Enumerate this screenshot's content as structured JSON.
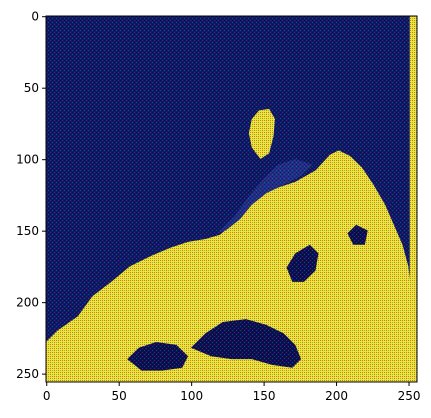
{
  "chart_data": {
    "type": "heatmap",
    "title": "",
    "xlabel": "",
    "ylabel": "",
    "image_size": [
      256,
      256
    ],
    "xlim": [
      0,
      256
    ],
    "ylim": [
      256,
      0
    ],
    "x_ticks": [
      0,
      50,
      100,
      150,
      200,
      250
    ],
    "y_ticks": [
      0,
      50,
      100,
      150,
      200,
      250
    ],
    "x_tick_labels": [
      "0",
      "50",
      "100",
      "150",
      "200",
      "250"
    ],
    "y_tick_labels": [
      "0",
      "50",
      "100",
      "150",
      "200",
      "250"
    ],
    "colors": {
      "background": "#0b1a6e",
      "dark_blue": "#08105a",
      "mid_blue": "#1c2f8f",
      "yellow": "#f2e23d",
      "yellow_dark": "#c9b629",
      "olive": "#7f7a3a",
      "red_speckle": "#b32020",
      "green_speckle": "#2f8f3a"
    },
    "regions": [
      {
        "name": "bright-mountain",
        "color": "yellow",
        "points": [
          [
            0,
            256
          ],
          [
            0,
            228
          ],
          [
            8,
            220
          ],
          [
            22,
            210
          ],
          [
            32,
            196
          ],
          [
            45,
            186
          ],
          [
            58,
            175
          ],
          [
            72,
            168
          ],
          [
            86,
            162
          ],
          [
            98,
            158
          ],
          [
            110,
            156
          ],
          [
            120,
            153
          ],
          [
            126,
            148
          ],
          [
            134,
            138
          ],
          [
            142,
            130
          ],
          [
            150,
            124
          ],
          [
            160,
            120
          ],
          [
            172,
            116
          ],
          [
            186,
            108
          ],
          [
            196,
            97
          ],
          [
            202,
            94
          ],
          [
            210,
            98
          ],
          [
            218,
            106
          ],
          [
            226,
            118
          ],
          [
            234,
            132
          ],
          [
            240,
            146
          ],
          [
            246,
            160
          ],
          [
            250,
            175
          ],
          [
            252,
            192
          ],
          [
            253,
            210
          ],
          [
            253,
            230
          ],
          [
            253,
            256
          ]
        ]
      },
      {
        "name": "bright-peak",
        "color": "yellow",
        "points": [
          [
            142,
            92
          ],
          [
            140,
            82
          ],
          [
            142,
            72
          ],
          [
            147,
            66
          ],
          [
            154,
            65
          ],
          [
            158,
            72
          ],
          [
            157,
            84
          ],
          [
            154,
            96
          ],
          [
            148,
            100
          ]
        ]
      },
      {
        "name": "ridge-shadow",
        "color": "mid_blue",
        "points": [
          [
            118,
            152
          ],
          [
            130,
            140
          ],
          [
            140,
            126
          ],
          [
            150,
            114
          ],
          [
            160,
            104
          ],
          [
            172,
            100
          ],
          [
            184,
            104
          ],
          [
            176,
            112
          ],
          [
            164,
            118
          ],
          [
            152,
            124
          ],
          [
            142,
            132
          ],
          [
            134,
            142
          ],
          [
            124,
            150
          ]
        ]
      },
      {
        "name": "valley-dark",
        "color": "dark_blue",
        "points": [
          [
            100,
            232
          ],
          [
            110,
            222
          ],
          [
            122,
            214
          ],
          [
            138,
            212
          ],
          [
            152,
            216
          ],
          [
            164,
            222
          ],
          [
            172,
            230
          ],
          [
            176,
            240
          ],
          [
            170,
            246
          ],
          [
            156,
            244
          ],
          [
            142,
            240
          ],
          [
            128,
            240
          ],
          [
            114,
            238
          ]
        ]
      },
      {
        "name": "valley-dark-2",
        "color": "dark_blue",
        "points": [
          [
            56,
            240
          ],
          [
            64,
            232
          ],
          [
            76,
            228
          ],
          [
            90,
            230
          ],
          [
            98,
            238
          ],
          [
            94,
            246
          ],
          [
            80,
            248
          ],
          [
            66,
            248
          ]
        ]
      },
      {
        "name": "mid-ridge-dark",
        "color": "dark_blue",
        "points": [
          [
            166,
            176
          ],
          [
            172,
            166
          ],
          [
            182,
            160
          ],
          [
            188,
            166
          ],
          [
            186,
            178
          ],
          [
            178,
            186
          ],
          [
            170,
            186
          ]
        ]
      },
      {
        "name": "right-patch",
        "color": "dark_blue",
        "points": [
          [
            208,
            152
          ],
          [
            214,
            146
          ],
          [
            222,
            150
          ],
          [
            220,
            160
          ],
          [
            212,
            160
          ]
        ]
      },
      {
        "name": "right-edge-strip",
        "color": "yellow",
        "points": [
          [
            251,
            0
          ],
          [
            256,
            0
          ],
          [
            256,
            256
          ],
          [
            251,
            256
          ]
        ]
      }
    ]
  }
}
